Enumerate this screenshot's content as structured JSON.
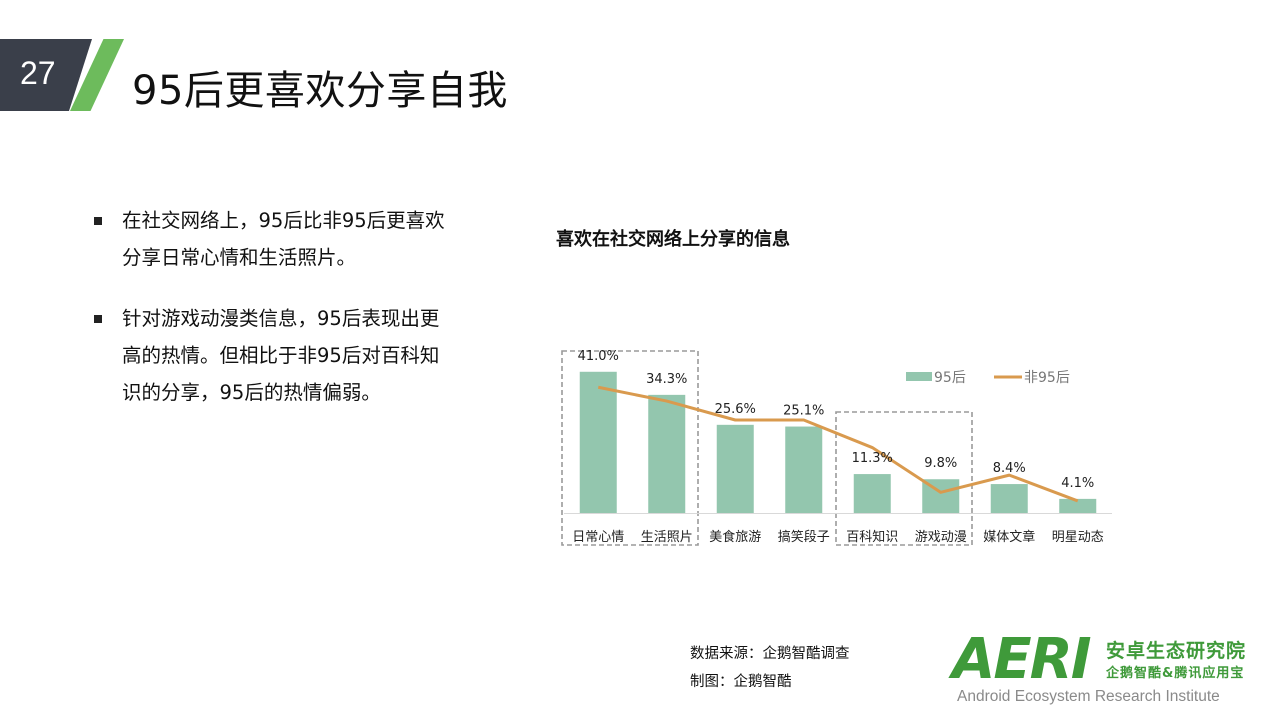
{
  "slide": {
    "number": "27",
    "title": "95后更喜欢分享自我"
  },
  "bullets": [
    {
      "text": "在社交网络上，95后比非95后更喜欢分享日常心情和生活照片。"
    },
    {
      "text": "针对游戏动漫类信息，95后表现出更高的热情。但相比于非95后对百科知识的分享，95后的热情偏弱。"
    }
  ],
  "chart_data": {
    "type": "bar",
    "title": "喜欢在社交网络上分享的信息",
    "categories": [
      "日常心情",
      "生活照片",
      "美食旅游",
      "搞笑段子",
      "百科知识",
      "游戏动漫",
      "媒体文章",
      "明星动态"
    ],
    "series": [
      {
        "name": "95后",
        "type": "bar",
        "color": "#93c6ae",
        "values": [
          41.0,
          34.3,
          25.6,
          25.1,
          11.3,
          9.8,
          8.4,
          4.1
        ],
        "labels": [
          "41.0%",
          "34.3%",
          "25.6%",
          "25.1%",
          "11.3%",
          "9.8%",
          "8.4%",
          "4.1%"
        ]
      },
      {
        "name": "非95后",
        "type": "line",
        "color": "#d99a4e",
        "values": [
          36.5,
          32.5,
          27.0,
          27.0,
          19.0,
          6.0,
          11.0,
          3.5
        ]
      }
    ],
    "ylim": [
      0,
      45
    ],
    "legend": "top-right",
    "grid": false,
    "highlight_groups": [
      [
        0,
        1
      ],
      [
        4,
        5
      ]
    ]
  },
  "footer": {
    "source": "数据来源：企鹅智酷调查",
    "maker": "制图：企鹅智酷"
  },
  "logo": {
    "letters": "AERI",
    "cn_name": "安卓生态研究院",
    "cn_sub": "企鹅智酷&腾讯应用宝",
    "en_name": "Android Ecosystem Research Institute"
  }
}
